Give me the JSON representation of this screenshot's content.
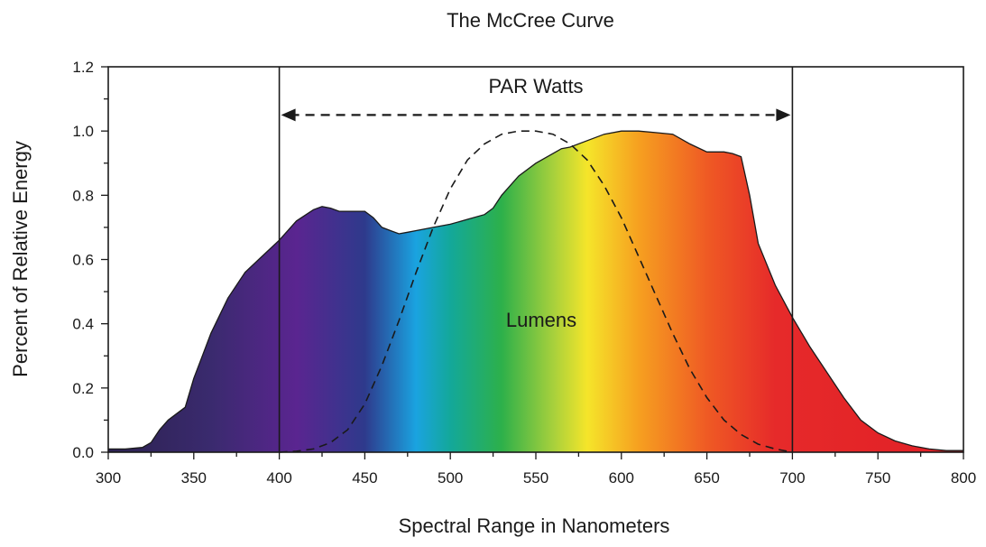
{
  "chart_data": {
    "type": "area",
    "title": "The McCree Curve",
    "xlabel": "Spectral Range in Nanometers",
    "ylabel": "Percent of Relative Energy",
    "xlim": [
      300,
      800
    ],
    "ylim": [
      0,
      1.2
    ],
    "x_ticks": [
      "300",
      "350",
      "400",
      "450",
      "500",
      "550",
      "600",
      "650",
      "700",
      "750",
      "800"
    ],
    "y_ticks": [
      "0.0",
      "0.2",
      "0.4",
      "0.6",
      "0.8",
      "1.0",
      "1.2"
    ],
    "grid": false,
    "series": [
      {
        "style": "spectrum-filled-area",
        "x": [
          300,
          310,
          320,
          325,
          330,
          335,
          340,
          345,
          350,
          355,
          360,
          370,
          380,
          390,
          400,
          410,
          420,
          425,
          430,
          435,
          440,
          450,
          455,
          460,
          465,
          470,
          475,
          480,
          490,
          500,
          510,
          520,
          525,
          530,
          540,
          550,
          560,
          565,
          570,
          580,
          590,
          600,
          610,
          620,
          630,
          640,
          650,
          660,
          665,
          670,
          675,
          680,
          690,
          700,
          710,
          720,
          730,
          740,
          750,
          760,
          770,
          780,
          790,
          800
        ],
        "y": [
          0.01,
          0.01,
          0.015,
          0.03,
          0.07,
          0.1,
          0.12,
          0.14,
          0.23,
          0.3,
          0.37,
          0.48,
          0.56,
          0.61,
          0.66,
          0.72,
          0.755,
          0.765,
          0.76,
          0.75,
          0.75,
          0.75,
          0.73,
          0.7,
          0.69,
          0.68,
          0.685,
          0.69,
          0.7,
          0.71,
          0.725,
          0.74,
          0.76,
          0.8,
          0.86,
          0.9,
          0.93,
          0.945,
          0.95,
          0.97,
          0.99,
          1.0,
          1.0,
          0.995,
          0.99,
          0.96,
          0.935,
          0.935,
          0.93,
          0.92,
          0.8,
          0.65,
          0.52,
          0.42,
          0.33,
          0.25,
          0.17,
          0.1,
          0.06,
          0.035,
          0.02,
          0.01,
          0.005,
          0.005
        ]
      },
      {
        "style": "dashed-line",
        "x": [
          400,
          410,
          420,
          430,
          440,
          450,
          460,
          470,
          480,
          490,
          500,
          510,
          520,
          530,
          540,
          550,
          560,
          570,
          580,
          590,
          600,
          610,
          620,
          630,
          640,
          650,
          660,
          670,
          680,
          690,
          700
        ],
        "y": [
          0.0,
          0.003,
          0.01,
          0.03,
          0.07,
          0.15,
          0.27,
          0.41,
          0.56,
          0.7,
          0.82,
          0.91,
          0.96,
          0.99,
          1.0,
          1.0,
          0.99,
          0.96,
          0.91,
          0.83,
          0.73,
          0.61,
          0.49,
          0.37,
          0.26,
          0.17,
          0.1,
          0.055,
          0.025,
          0.01,
          0.0
        ]
      }
    ],
    "vertical_lines": [
      400,
      700
    ],
    "par_arrow": {
      "label": "PAR Watts",
      "from": 400,
      "to": 700,
      "y": 1.05
    },
    "annotations": [
      {
        "text": "Lumens",
        "x": 555,
        "y": 0.41
      }
    ],
    "spectrum_colors": [
      {
        "nm": 300,
        "color": "#2c2250"
      },
      {
        "nm": 360,
        "color": "#3a2a6e"
      },
      {
        "nm": 410,
        "color": "#5a2590"
      },
      {
        "nm": 450,
        "color": "#2e3a8c"
      },
      {
        "nm": 480,
        "color": "#1aa3e0"
      },
      {
        "nm": 500,
        "color": "#13a89a"
      },
      {
        "nm": 530,
        "color": "#2db04a"
      },
      {
        "nm": 560,
        "color": "#a6d03c"
      },
      {
        "nm": 580,
        "color": "#f5e52a"
      },
      {
        "nm": 610,
        "color": "#f6a020"
      },
      {
        "nm": 650,
        "color": "#ef5a24"
      },
      {
        "nm": 690,
        "color": "#e62a2a"
      },
      {
        "nm": 800,
        "color": "#e11f26"
      }
    ]
  }
}
